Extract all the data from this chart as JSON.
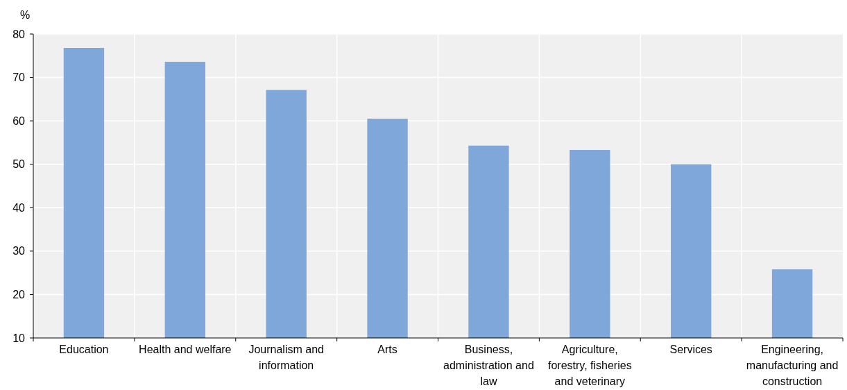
{
  "chart_data": {
    "type": "bar",
    "ylabel": "%",
    "categories": [
      "Education",
      "Health and welfare",
      "Journalism and information",
      "Arts",
      "Business, administration and law",
      "Agriculture, forestry, fisheries and veterinary",
      "Services",
      "Engineering, manufacturing and construction"
    ],
    "values": [
      76.8,
      73.6,
      67.1,
      60.5,
      54.3,
      53.3,
      50.0,
      25.8
    ],
    "color": "#7fa7d9",
    "ylim": [
      10,
      80
    ],
    "yticks": [
      10,
      20,
      30,
      40,
      50,
      60,
      70,
      80
    ],
    "grid": true
  }
}
